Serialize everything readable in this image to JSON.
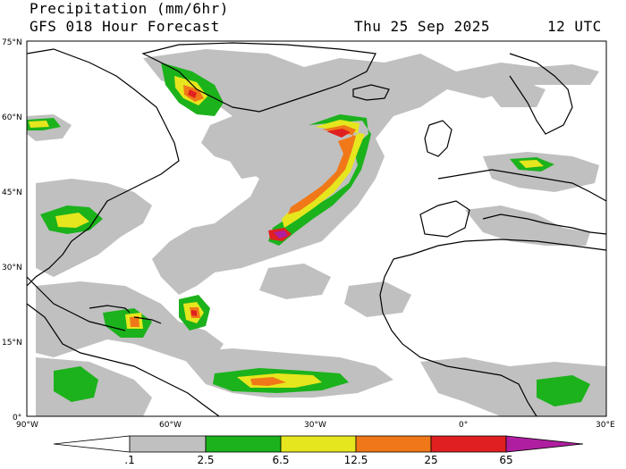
{
  "header": {
    "line1": "Precipitation (mm/6hr)",
    "line2_left": "GFS 018 Hour Forecast",
    "line2_date": "Thu 25 Sep 2025",
    "line2_time": "12 UTC"
  },
  "map": {
    "lat_labels": [
      "75°N",
      "60°N",
      "45°N",
      "30°N",
      "15°N",
      "0°"
    ],
    "lon_labels": [
      "90°W",
      "60°W",
      "30°W",
      "0°",
      "30°E"
    ],
    "region": "North Atlantic",
    "colors": {
      "ocean": "#ffffff",
      "coast": "#000000",
      "light": "#c0c0c0",
      "green": "#1cb21c",
      "yellow": "#e6e61e",
      "orange": "#f07818",
      "red": "#e02020",
      "purple": "#b01ea0"
    }
  },
  "colorbar": {
    "ticks": [
      ".1",
      "2.5",
      "6.5",
      "12.5",
      "25",
      "65"
    ],
    "colors": [
      "#ffffff",
      "#c0c0c0",
      "#1cb21c",
      "#e6e61e",
      "#f07818",
      "#e02020",
      "#b01ea0"
    ]
  }
}
